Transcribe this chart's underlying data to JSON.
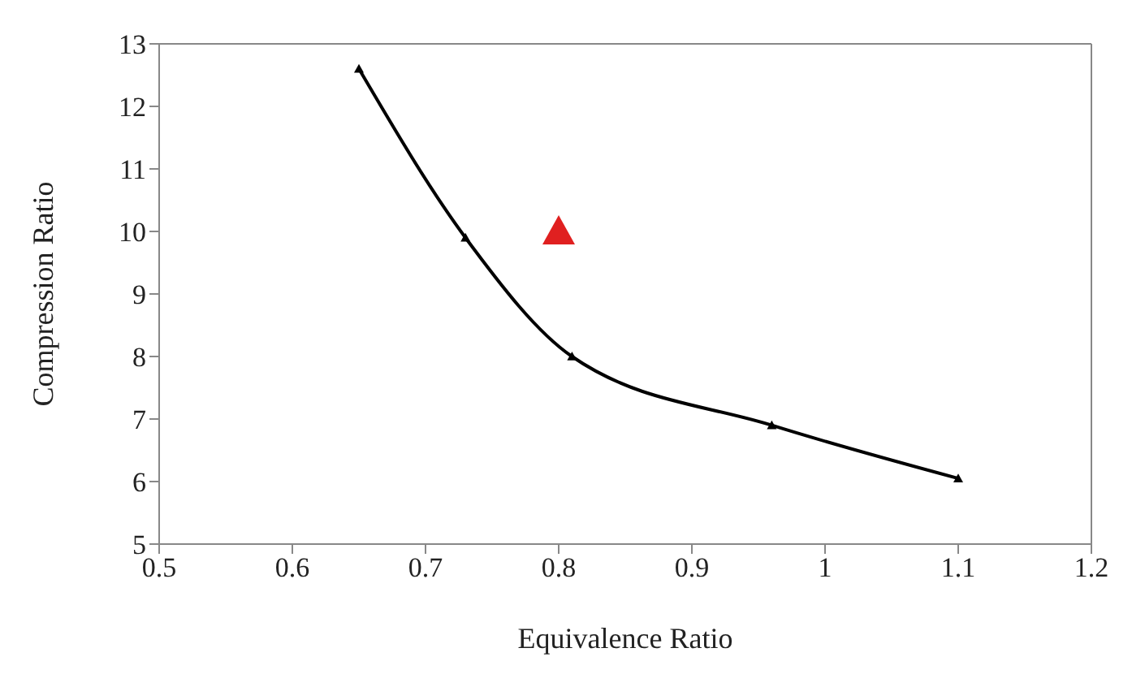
{
  "chart_data": {
    "type": "line",
    "xlabel": "Equivalence Ratio",
    "ylabel": "Compression Ratio",
    "series": [
      {
        "color": "#000000",
        "marker": "triangle",
        "x": [
          0.65,
          0.73,
          0.81,
          0.96,
          1.1
        ],
        "values": [
          12.6,
          9.9,
          8.0,
          6.9,
          6.05
        ]
      },
      {
        "type": "scatter",
        "color": "#e02020",
        "marker": "triangle",
        "x": [
          0.8
        ],
        "values": [
          10.0
        ]
      }
    ],
    "xlim": [
      0.5,
      1.2
    ],
    "xticks": [
      0.5,
      0.6,
      0.7,
      0.8,
      0.9,
      1,
      1.1,
      1.2
    ],
    "ylim": [
      5,
      13
    ],
    "yticks": [
      5,
      6,
      7,
      8,
      9,
      10,
      11,
      12,
      13
    ]
  }
}
